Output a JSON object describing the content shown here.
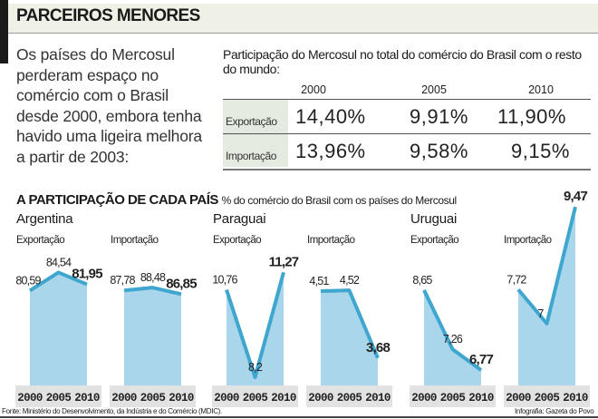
{
  "header": {
    "title": "PARCEIROS MENORES"
  },
  "intro": "Os países do Mercosul perderam espaço no comércio com o Brasil desde 2000, embora tenha havido uma ligeira melhora a partir de 2003:",
  "table": {
    "title": "Participação do Mercosul no total do comércio do Brasil com o resto do mundo:",
    "years": [
      "2000",
      "2005",
      "2010"
    ],
    "rows": [
      {
        "label": "Exportação",
        "values": [
          "14,40%",
          "9,91%",
          "11,90%"
        ]
      },
      {
        "label": "Importação",
        "values": [
          "13,96%",
          "9,58%",
          "9,15%"
        ]
      }
    ]
  },
  "section": {
    "title": "A PARTICIPAÇÃO DE CADA PAÍS",
    "subtitle": "% do comércio do Brasil com os países do Mercosul"
  },
  "countries": [
    "Argentina",
    "Paraguai",
    "Uruguai"
  ],
  "colors": {
    "line": "#3ea6cf",
    "fill": "#a9d6ea",
    "axis_band": "#e2e2e2",
    "header_bg": "#eff1e6"
  },
  "chart_data": [
    {
      "type": "area",
      "country": "Argentina",
      "title": "Exportação",
      "x": [
        "2000",
        "2005",
        "2010"
      ],
      "values": [
        80.59,
        84.54,
        81.95
      ],
      "labels": [
        "80,59",
        "84,54",
        "81,95"
      ],
      "ylim": [
        60,
        99.4
      ]
    },
    {
      "type": "area",
      "country": "Argentina",
      "title": "Importação",
      "x": [
        "2000",
        "2005",
        "2010"
      ],
      "values": [
        87.78,
        88.48,
        86.85
      ],
      "labels": [
        "87,78",
        "88,48",
        "86,85"
      ],
      "ylim": [
        64,
        109.4
      ]
    },
    {
      "type": "area",
      "country": "Paraguai",
      "title": "Exportação",
      "x": [
        "2000",
        "2005",
        "2010"
      ],
      "values": [
        10.76,
        8.2,
        11.27
      ],
      "labels": [
        "10,76",
        "8,2",
        "11,27"
      ],
      "ylim": [
        7.96,
        13.27
      ]
    },
    {
      "type": "area",
      "country": "Paraguai",
      "title": "Importação",
      "x": [
        "2000",
        "2005",
        "2010"
      ],
      "values": [
        4.51,
        4.52,
        3.68
      ],
      "labels": [
        "4,51",
        "4,52",
        "3,68"
      ],
      "ylim": [
        3.34,
        5.59
      ]
    },
    {
      "type": "area",
      "country": "Uruguai",
      "title": "Exportação",
      "x": [
        "2000",
        "2005",
        "2010"
      ],
      "values": [
        8.65,
        7.26,
        6.77
      ],
      "labels": [
        "8,65",
        "7,26",
        "6,77"
      ],
      "ylim": [
        6.41,
        10.67
      ]
    },
    {
      "type": "area",
      "country": "Uruguai",
      "title": "Importação",
      "x": [
        "2000",
        "2005",
        "2010"
      ],
      "values": [
        7.72,
        7,
        9.47
      ],
      "labels": [
        "7,72",
        "7",
        "9,47"
      ],
      "ylim": [
        5.69,
        9.53
      ]
    }
  ],
  "footer": {
    "source": "Fonte: Ministério do Desenvolvimento, da Indústria e do Comércio (MDIC).",
    "credit": "Infografia: Gazeta do Povo"
  }
}
